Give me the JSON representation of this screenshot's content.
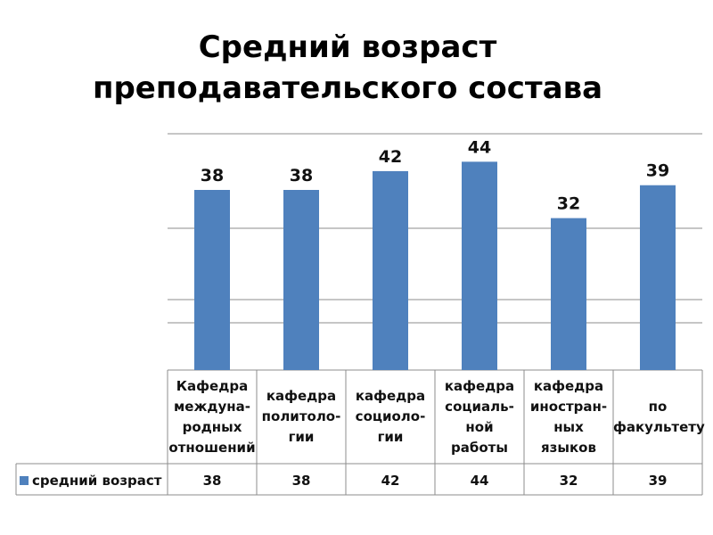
{
  "title": "Средний возраст\nпреподавательского состава",
  "chart_data": {
    "type": "bar",
    "categories": [
      "Кафедра\nмеждуна-\nродных\nотношений",
      "кафедра\nполитоло-\nгии",
      "кафедра\nсоциоло-\nгии",
      "кафедра\nсоциаль-\nной\nработы",
      "кафедра\nиностран-\nных\nязыков",
      "по\nфакультету"
    ],
    "series": [
      {
        "name": "средний возраст",
        "values": [
          38,
          38,
          42,
          44,
          32,
          39
        ]
      }
    ],
    "data_labels": [
      "38",
      "38",
      "42",
      "44",
      "32",
      "39"
    ],
    "bar_color": "#4f81bd",
    "legend": "bottom-left (data table)",
    "grid": true
  }
}
